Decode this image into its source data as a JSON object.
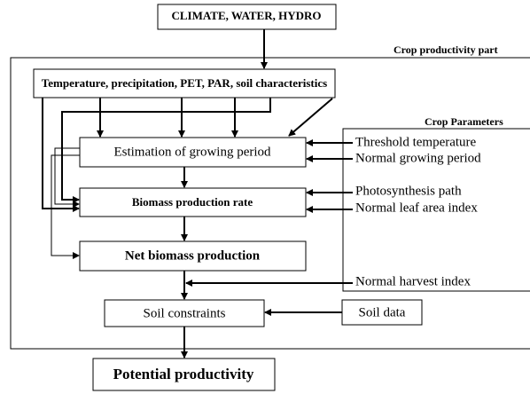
{
  "title": "CLIMATE, WATER, HYDRO",
  "section_label": "Crop productivity part",
  "parameters_label": "Crop Parameters",
  "nodes": [
    {
      "label": "Temperature, precipitation, PET, PAR, soil characteristics"
    },
    {
      "label": "Estimation of growing period"
    },
    {
      "label": "Biomass production rate"
    },
    {
      "label": "Net biomass production"
    },
    {
      "label": "Soil constraints"
    },
    {
      "label": "Soil data"
    },
    {
      "label": "Potential productivity"
    }
  ],
  "parameters": [
    "Threshold temperature",
    "Normal growing period",
    "Photosynthesis path",
    "Normal leaf area index",
    "Normal harvest index"
  ]
}
